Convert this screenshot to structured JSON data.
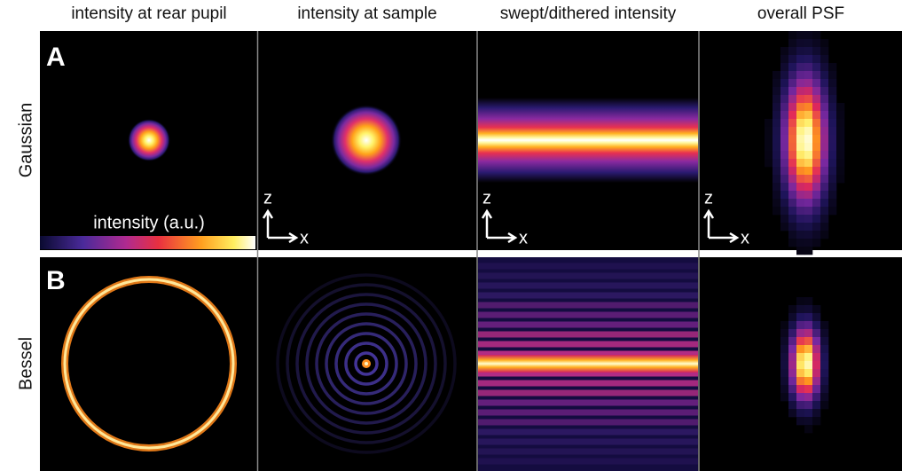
{
  "header": {
    "columns": [
      "intensity at rear pupil",
      "intensity at sample",
      "swept/dithered intensity",
      "overall PSF"
    ]
  },
  "rows": [
    {
      "letter": "A",
      "label": "Gaussian"
    },
    {
      "letter": "B",
      "label": "Bessel"
    }
  ],
  "colorbar": {
    "label": "intensity (a.u.)"
  },
  "axes": {
    "vertical": "z",
    "horizontal": "x"
  }
}
